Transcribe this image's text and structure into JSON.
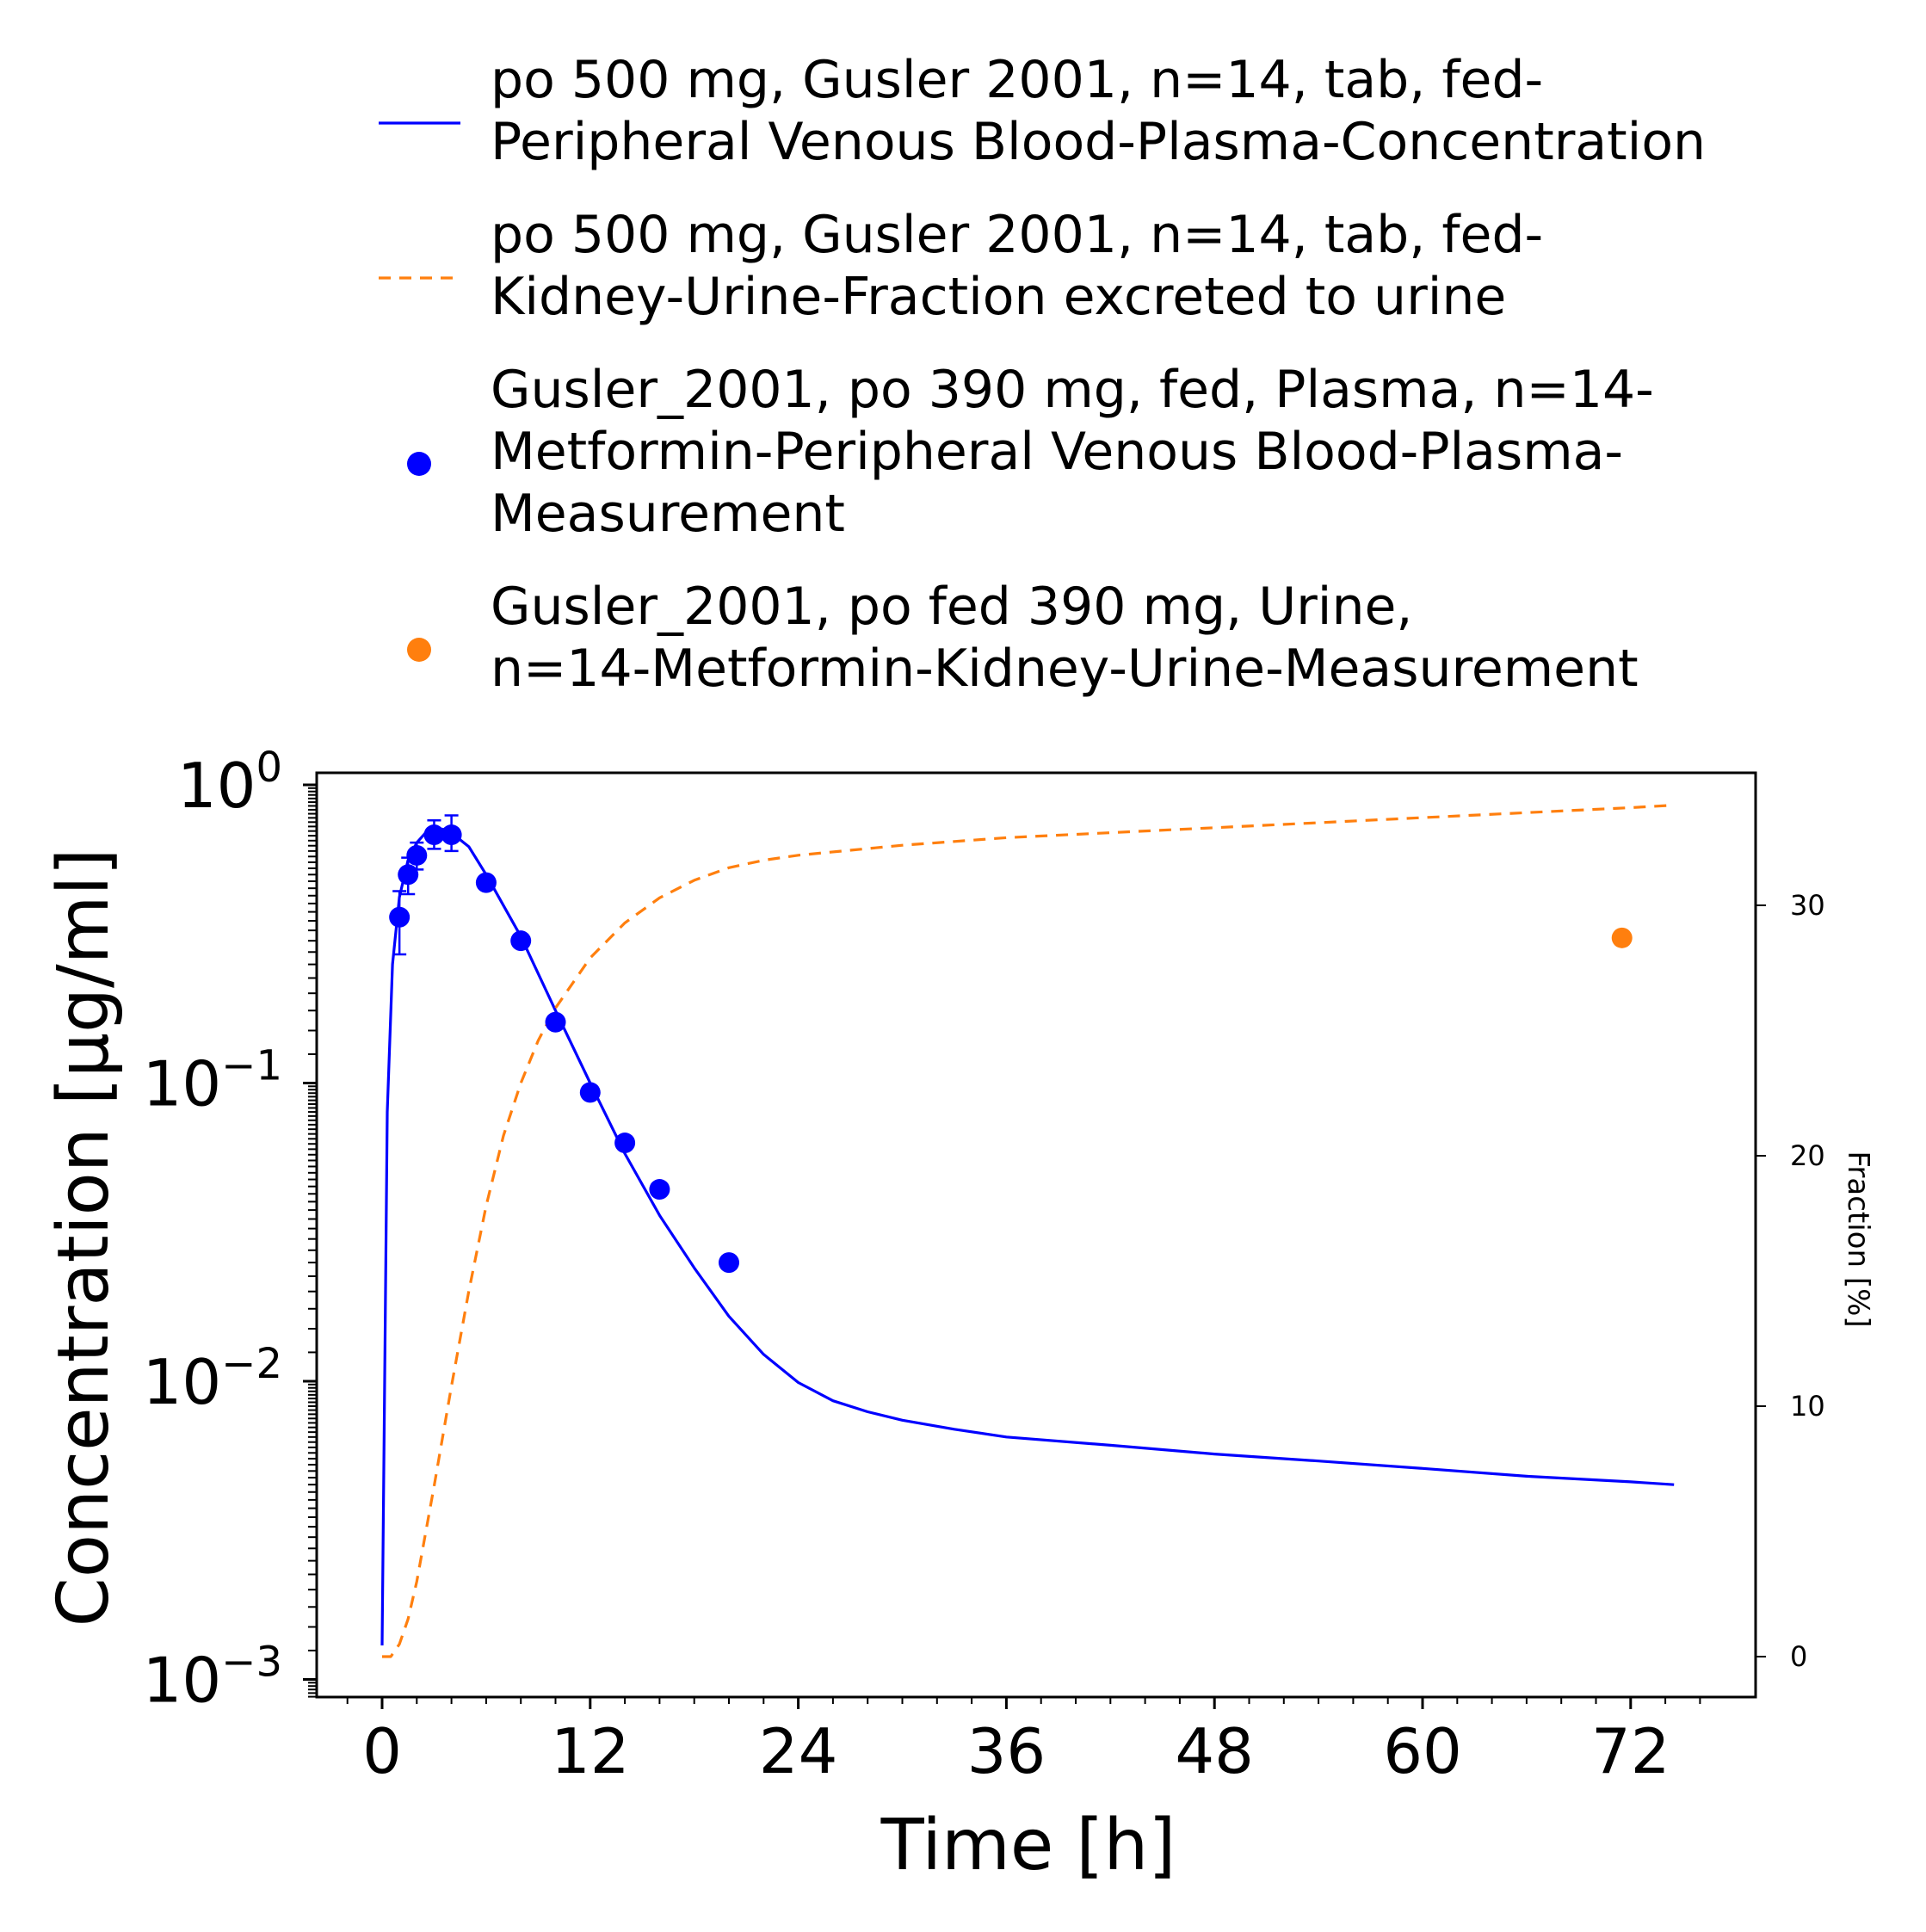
{
  "chart_data": {
    "type": "line",
    "xlabel": "Time [h]",
    "ylabel": "Concentration [µg/ml]",
    "y2label": "Fraction [%]",
    "xlim": [
      -3,
      78
    ],
    "xticks": [
      "0",
      "12",
      "24",
      "36",
      "48",
      "60",
      "72"
    ],
    "ylim": [
      0.00075,
      1.04
    ],
    "yscale": "log",
    "yticks": [
      {
        "base": "10",
        "exp": "0"
      },
      {
        "base": "10",
        "exp": "−1"
      },
      {
        "base": "10",
        "exp": "−2"
      },
      {
        "base": "10",
        "exp": "−3"
      }
    ],
    "y2lim": [
      -1.5,
      35.3
    ],
    "y2ticks": [
      "0",
      "10",
      "20",
      "30"
    ],
    "grid": false,
    "legend_position": "top, above plot",
    "series": [
      {
        "name": "po 500 mg, Gusler 2001, n=14, tab, fed-Peripheral Venous Blood-Plasma-Concentration",
        "legend_lines": [
          "po 500 mg, Gusler 2001, n=14, tab, fed-",
          "Peripheral Venous Blood-Plasma-Concentration"
        ],
        "style": "solid line",
        "axis": "left",
        "color": "#0000ff",
        "x": [
          0,
          0.3,
          0.6,
          1.0,
          1.5,
          2.0,
          2.5,
          3.0,
          3.5,
          4.0,
          5.0,
          6.0,
          8.0,
          10.0,
          12.0,
          14.0,
          16.0,
          18.0,
          20.0,
          22.0,
          24.0,
          26.0,
          28.0,
          30.0,
          33.0,
          36.0,
          42.0,
          48.0,
          54.0,
          60.0,
          66.0,
          72.0,
          74.5
        ],
        "y": [
          0.0013,
          0.08,
          0.25,
          0.42,
          0.56,
          0.64,
          0.69,
          0.71,
          0.71,
          0.69,
          0.62,
          0.5,
          0.31,
          0.175,
          0.1,
          0.058,
          0.036,
          0.024,
          0.0165,
          0.0123,
          0.0099,
          0.0086,
          0.0079,
          0.0074,
          0.0069,
          0.0065,
          0.0061,
          0.0057,
          0.0054,
          0.0051,
          0.0048,
          0.0046,
          0.0045
        ]
      },
      {
        "name": "po 500 mg, Gusler 2001, n=14, tab, fed-Kidney-Urine-Fraction excreted to urine",
        "legend_lines": [
          "po 500 mg, Gusler 2001, n=14, tab, fed-",
          "Kidney-Urine-Fraction excreted to urine"
        ],
        "style": "dashed line",
        "axis": "right",
        "color": "#ff7f0e",
        "x": [
          0,
          0.5,
          1.0,
          1.5,
          2.0,
          3.0,
          4.0,
          5.0,
          6.0,
          7.0,
          8.0,
          9.0,
          10.0,
          12.0,
          14.0,
          16.0,
          18.0,
          20.0,
          22.0,
          24.0,
          27.0,
          30.0,
          36.0,
          42.0,
          48.0,
          54.0,
          60.0,
          66.0,
          72.0,
          74.5
        ],
        "y": [
          0,
          0.0,
          0.5,
          1.5,
          3.0,
          6.8,
          10.8,
          14.6,
          18.0,
          20.8,
          22.9,
          24.6,
          25.9,
          27.9,
          29.3,
          30.3,
          31.0,
          31.5,
          31.8,
          32.0,
          32.2,
          32.4,
          32.7,
          32.9,
          33.1,
          33.3,
          33.5,
          33.7,
          33.9,
          34.0
        ]
      },
      {
        "name": "Gusler_2001, po 390 mg, fed, Plasma, n=14-Metformin-Peripheral Venous Blood-Plasma-Measurement",
        "legend_lines": [
          "Gusler_2001, po 390 mg, fed, Plasma, n=14-",
          "Metformin-Peripheral Venous Blood-Plasma-",
          "Measurement"
        ],
        "style": "markers with error bars",
        "axis": "left",
        "color": "#0000ff",
        "x": [
          1.0,
          1.5,
          2.0,
          3.0,
          4.0,
          6.0,
          8.0,
          10.0,
          12.0,
          14.0,
          16.0,
          20.0
        ],
        "y": [
          0.36,
          0.5,
          0.58,
          0.68,
          0.68,
          0.47,
          0.3,
          0.16,
          0.093,
          0.063,
          0.044,
          0.025
        ],
        "err_low": [
          0.27,
          0.43,
          0.52,
          0.61,
          0.6,
          0.47,
          0.3,
          0.16,
          0.093,
          0.063,
          0.044,
          0.025
        ],
        "err_high": [
          0.44,
          0.57,
          0.64,
          0.76,
          0.79,
          0.47,
          0.3,
          0.16,
          0.093,
          0.063,
          0.044,
          0.025
        ]
      },
      {
        "name": "Gusler_2001, po fed 390 mg, Urine, n=14-Metformin-Kidney-Urine-Measurement",
        "legend_lines": [
          "Gusler_2001, po fed 390 mg, Urine,",
          "n=14-Metformin-Kidney-Urine-Measurement"
        ],
        "style": "markers",
        "axis": "right",
        "color": "#ff7f0e",
        "x": [
          71.5
        ],
        "y": [
          28.7
        ]
      }
    ]
  }
}
